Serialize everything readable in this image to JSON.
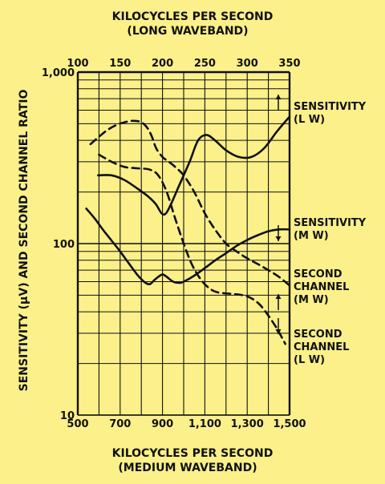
{
  "chart_data": {
    "type": "line",
    "title": "",
    "x_bottom": {
      "label_line1": "KILOCYCLES PER SECOND",
      "label_line2": "(MEDIUM WAVEBAND)",
      "range": [
        500,
        1500
      ],
      "ticks": [
        500,
        700,
        900,
        1100,
        1300,
        1500
      ],
      "tick_labels": [
        "500",
        "700",
        "900",
        "1,100",
        "1,300",
        "1,500"
      ]
    },
    "x_top": {
      "label_line1": "KILOCYCLES PER SECOND",
      "label_line2": "(LONG WAVEBAND)",
      "range": [
        100,
        350
      ],
      "ticks": [
        100,
        150,
        200,
        250,
        300,
        350
      ],
      "tick_labels": [
        "100",
        "150",
        "200",
        "250",
        "300",
        "350"
      ]
    },
    "y": {
      "label": "SENSITIVITY (μV) AND SECOND CHANNEL RATIO",
      "scale": "log",
      "range": [
        10,
        1000
      ],
      "ticks": [
        10,
        100,
        1000
      ],
      "tick_labels": [
        "10",
        "100",
        "1,000"
      ]
    },
    "grid": true,
    "series": [
      {
        "name": "SENSITIVITY (L W)",
        "label_lines": [
          "SENSITIVITY",
          "(L W)"
        ],
        "axis": "top",
        "style": "solid",
        "arrow": "up",
        "x": [
          124,
          140,
          155,
          170,
          182,
          192,
          199,
          204,
          210,
          220,
          232,
          242,
          252,
          262,
          275,
          290,
          305,
          320,
          335,
          350
        ],
        "y": [
          250,
          250,
          235,
          210,
          190,
          170,
          150,
          150,
          170,
          220,
          300,
          400,
          430,
          400,
          350,
          320,
          320,
          360,
          450,
          550
        ]
      },
      {
        "name": "SENSITIVITY (M W)",
        "label_lines": [
          "SENSITIVITY",
          "(M W)"
        ],
        "axis": "bottom",
        "style": "solid",
        "arrow": "down",
        "x": [
          540,
          580,
          620,
          660,
          700,
          740,
          780,
          800,
          820,
          840,
          860,
          880,
          900,
          920,
          950,
          980,
          1000,
          1050,
          1100,
          1150,
          1200,
          1250,
          1300,
          1350,
          1400,
          1450,
          1500
        ],
        "y": [
          160,
          140,
          120,
          104,
          90,
          77,
          66,
          62,
          59,
          58,
          61,
          64,
          66,
          64,
          60,
          59,
          60,
          65,
          72,
          80,
          88,
          97,
          105,
          112,
          118,
          121,
          121
        ]
      },
      {
        "name": "SECOND CHANNEL (M W)",
        "label_lines": [
          "SECOND",
          "CHANNEL",
          "(M W)"
        ],
        "axis": "bottom",
        "style": "dashed",
        "arrow": "up",
        "x": [
          560,
          600,
          640,
          680,
          720,
          760,
          800,
          830,
          850,
          870,
          900,
          930,
          960,
          1000,
          1050,
          1100,
          1150,
          1200,
          1250,
          1300,
          1350,
          1400,
          1450,
          1500
        ],
        "y": [
          380,
          420,
          460,
          490,
          510,
          520,
          510,
          470,
          420,
          360,
          320,
          300,
          280,
          250,
          200,
          150,
          120,
          100,
          90,
          82,
          76,
          70,
          64,
          57
        ]
      },
      {
        "name": "SECOND CHANNEL (L W)",
        "label_lines": [
          "SECOND",
          "CHANNEL",
          "(L W)"
        ],
        "axis": "top",
        "style": "dashed",
        "arrow": "down",
        "x": [
          125,
          140,
          155,
          170,
          185,
          195,
          205,
          215,
          225,
          235,
          245,
          255,
          265,
          280,
          295,
          305,
          315,
          325,
          335,
          345
        ],
        "y": [
          330,
          300,
          280,
          275,
          270,
          250,
          200,
          140,
          100,
          75,
          62,
          55,
          52,
          51,
          50,
          48,
          44,
          38,
          32,
          26
        ]
      }
    ]
  }
}
